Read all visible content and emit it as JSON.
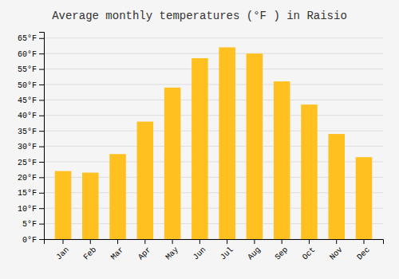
{
  "chart_data": {
    "type": "bar",
    "title": "Average monthly temperatures (°F ) in Raisio",
    "categories": [
      "Jan",
      "Feb",
      "Mar",
      "Apr",
      "May",
      "Jun",
      "Jul",
      "Aug",
      "Sep",
      "Oct",
      "Nov",
      "Dec"
    ],
    "values": [
      22,
      21.5,
      27.5,
      38,
      49,
      58.5,
      62,
      60,
      51,
      43.5,
      34,
      26.5
    ],
    "color": "#FFC020",
    "ylim": [
      0,
      67
    ],
    "yticks": [
      {
        "value": 0,
        "label": "0°F"
      },
      {
        "value": 5,
        "label": "5°F"
      },
      {
        "value": 10,
        "label": "10°F"
      },
      {
        "value": 15,
        "label": "15°F"
      },
      {
        "value": 20,
        "label": "20°F"
      },
      {
        "value": 25,
        "label": "25°F"
      },
      {
        "value": 30,
        "label": "30°F"
      },
      {
        "value": 35,
        "label": "35°F"
      },
      {
        "value": 40,
        "label": "40°F"
      },
      {
        "value": 45,
        "label": "45°F"
      },
      {
        "value": 50,
        "label": "50°F"
      },
      {
        "value": 55,
        "label": "55°F"
      },
      {
        "value": 60,
        "label": "60°F"
      },
      {
        "value": 65,
        "label": "65°F"
      }
    ],
    "grid": true
  }
}
